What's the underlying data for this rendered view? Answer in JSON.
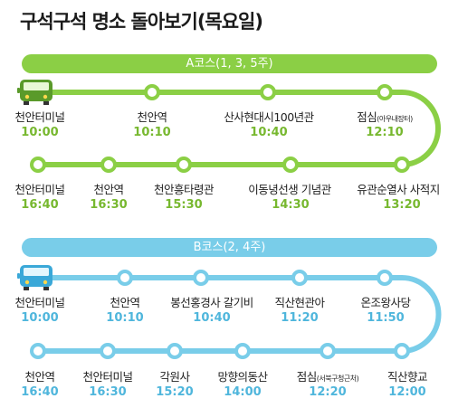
{
  "title": "구석구석 명소 돌아보기(목요일)",
  "colors": {
    "route_a": "#8bcf45",
    "route_a_time": "#77b82f",
    "route_b": "#79cde9",
    "route_b_time": "#4fb6dc"
  },
  "route_a": {
    "label": "A코스(1, 3, 5주)",
    "stops": [
      {
        "name": "천안터미널",
        "time": "10:00"
      },
      {
        "name": "천안역",
        "time": "10:10"
      },
      {
        "name": "산사현대시100년관",
        "time": "10:40"
      },
      {
        "name": "점심",
        "note": "(아우내장터)",
        "time": "12:10"
      },
      {
        "name": "유관순열사 사적지",
        "time": "13:20"
      },
      {
        "name": "이동녕선생 기념관",
        "time": "14:30"
      },
      {
        "name": "천안흥타령관",
        "time": "15:30"
      },
      {
        "name": "천안역",
        "time": "16:30"
      },
      {
        "name": "천안터미널",
        "time": "16:40"
      }
    ]
  },
  "route_b": {
    "label": "B코스(2, 4주)",
    "stops": [
      {
        "name": "천안터미널",
        "time": "10:00"
      },
      {
        "name": "천안역",
        "time": "10:10"
      },
      {
        "name": "봉선홍경사 갈기비",
        "time": "10:40"
      },
      {
        "name": "직산현관아",
        "time": "11:20"
      },
      {
        "name": "온조왕사당",
        "time": "11:50"
      },
      {
        "name": "직산향교",
        "time": "12:00"
      },
      {
        "name": "점심",
        "note": "(서북구청근처)",
        "time": "12:20"
      },
      {
        "name": "망향의동산",
        "time": "14:00"
      },
      {
        "name": "각원사",
        "time": "15:20"
      },
      {
        "name": "천안터미널",
        "time": "16:30"
      },
      {
        "name": "천안역",
        "time": "16:40"
      }
    ]
  }
}
